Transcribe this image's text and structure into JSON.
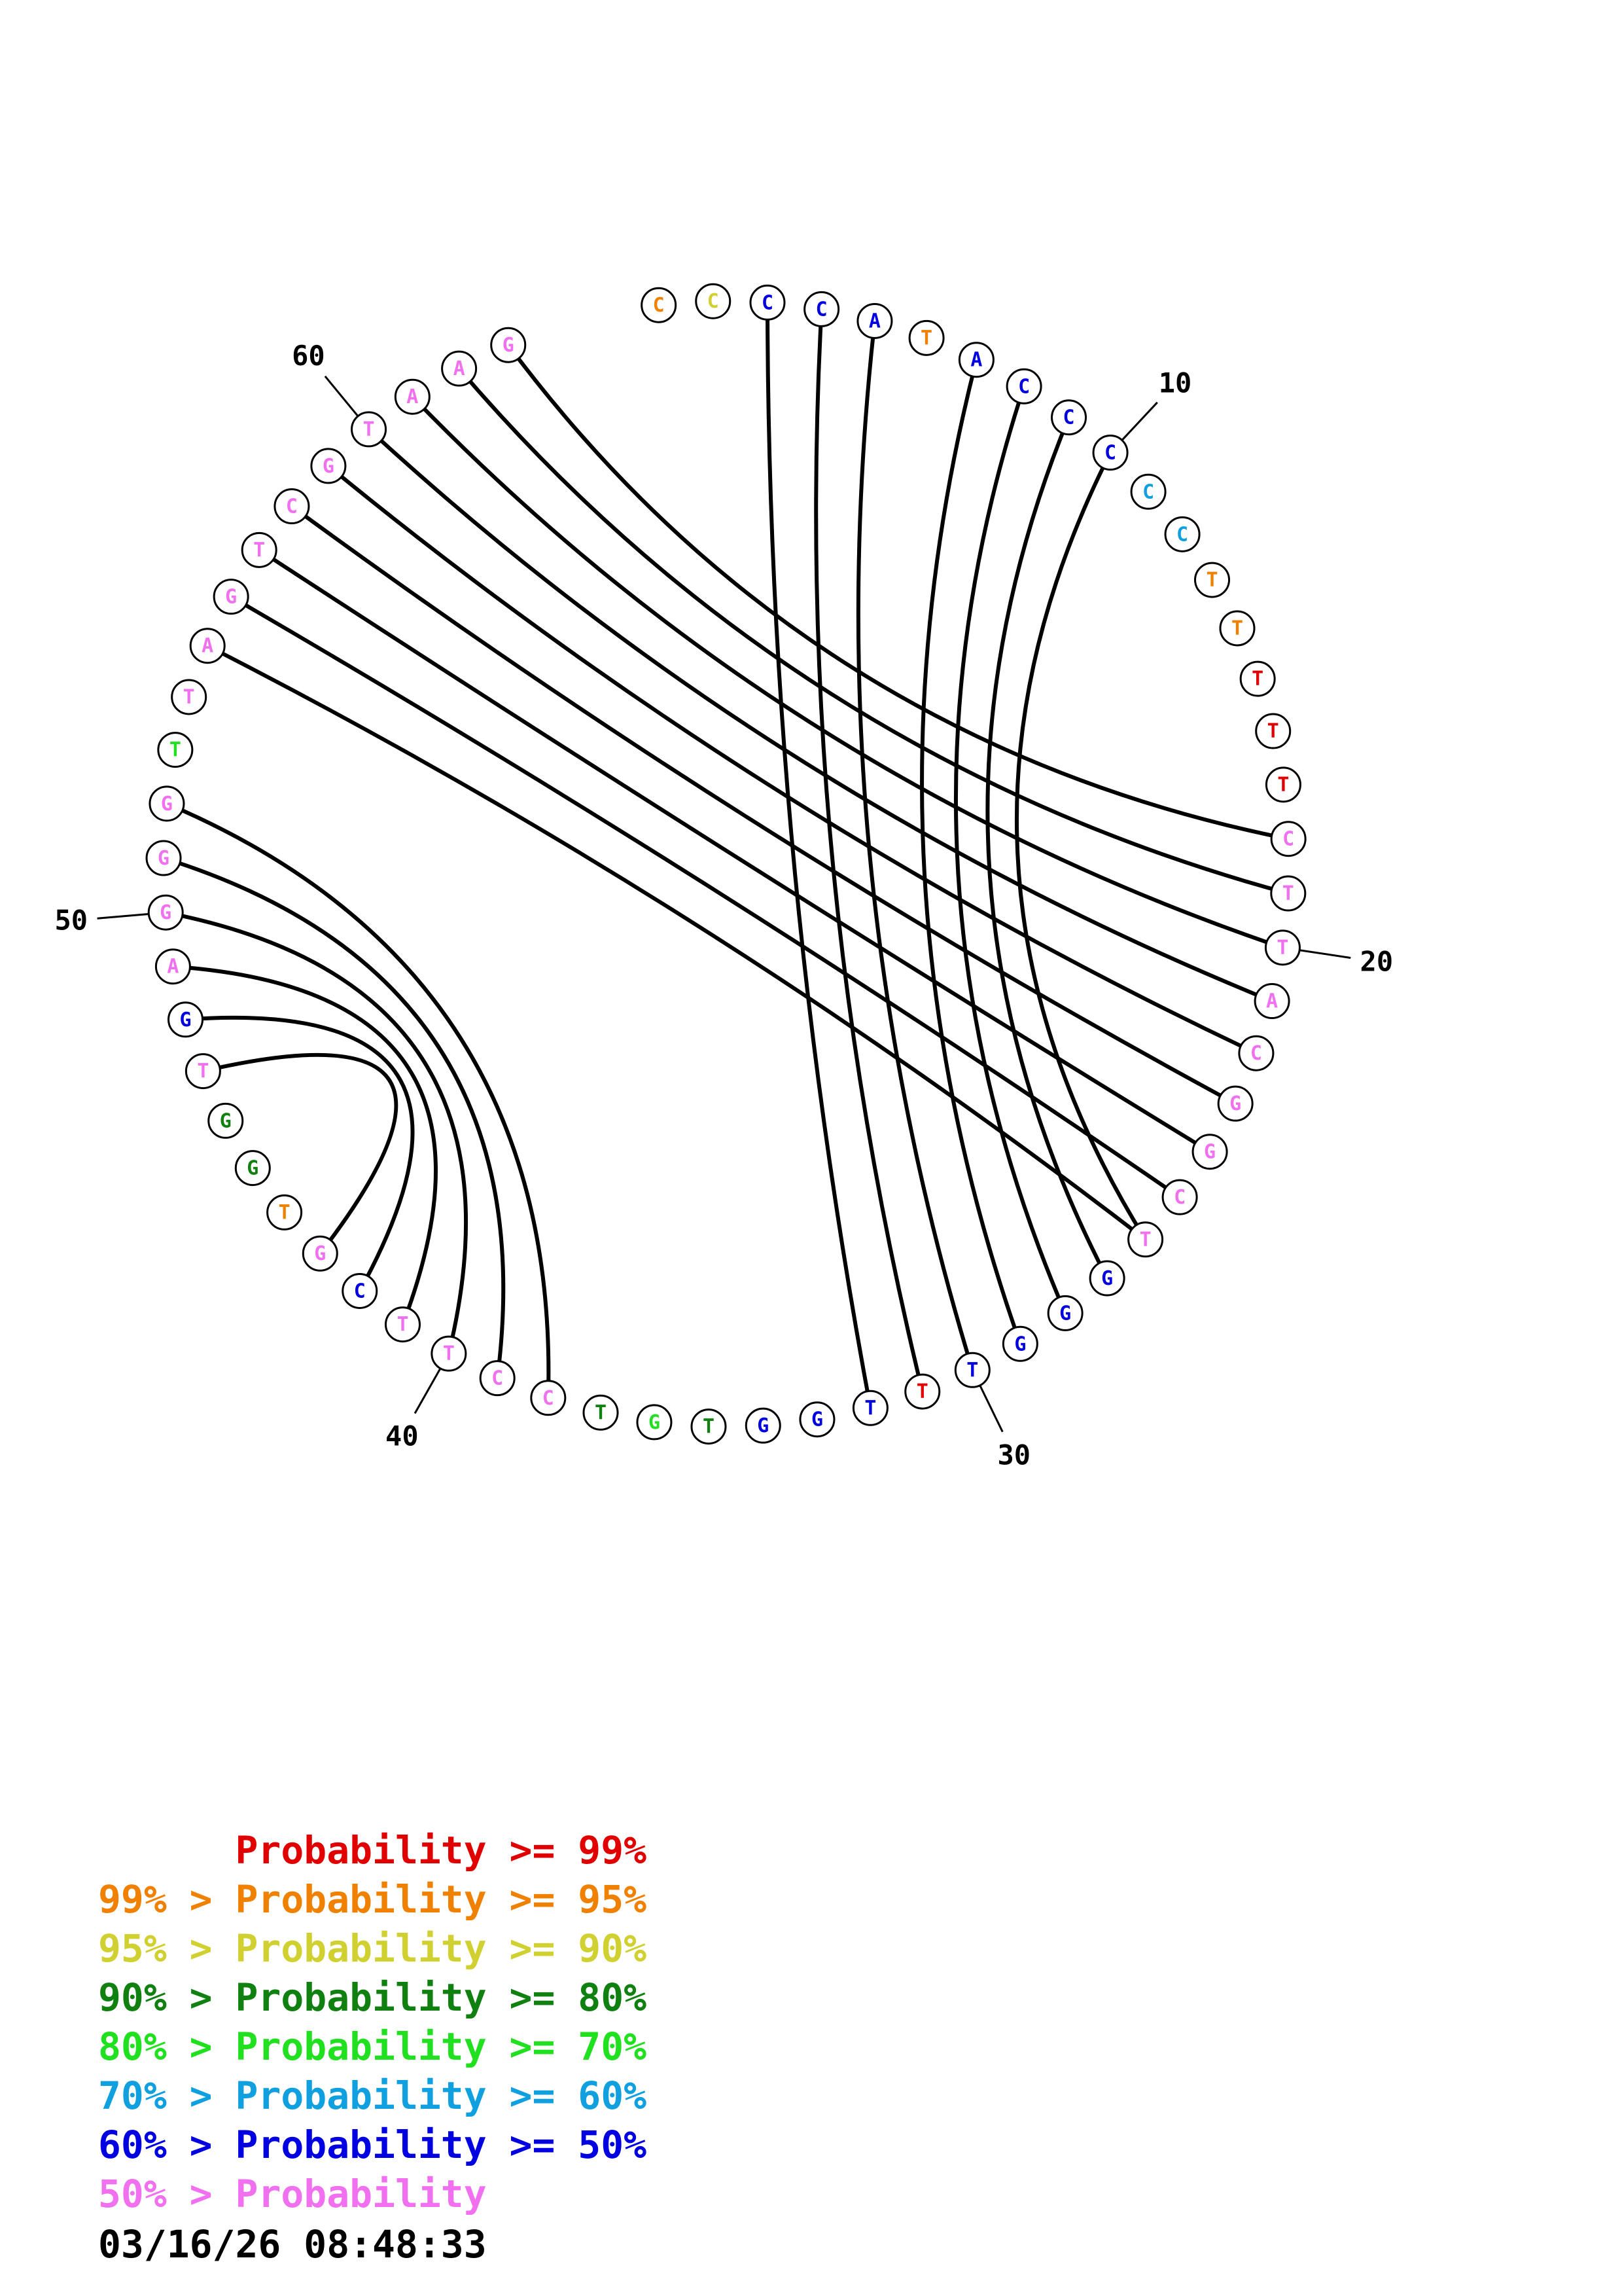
{
  "colors": {
    "p99": "#e00000",
    "p95": "#f08000",
    "p90": "#d0d030",
    "p80": "#108010",
    "p70": "#20e020",
    "p60": "#10a0e0",
    "p50": "#0000e0",
    "plow": "#f070f0"
  },
  "sequence": [
    {
      "n": 1,
      "base": "C",
      "prob": "p95"
    },
    {
      "n": 2,
      "base": "C",
      "prob": "p90"
    },
    {
      "n": 3,
      "base": "C",
      "prob": "p50"
    },
    {
      "n": 4,
      "base": "C",
      "prob": "p50"
    },
    {
      "n": 5,
      "base": "A",
      "prob": "p50"
    },
    {
      "n": 6,
      "base": "T",
      "prob": "p95"
    },
    {
      "n": 7,
      "base": "A",
      "prob": "p50"
    },
    {
      "n": 8,
      "base": "C",
      "prob": "p50"
    },
    {
      "n": 9,
      "base": "C",
      "prob": "p50"
    },
    {
      "n": 10,
      "base": "C",
      "prob": "p50"
    },
    {
      "n": 11,
      "base": "C",
      "prob": "p60"
    },
    {
      "n": 12,
      "base": "C",
      "prob": "p60"
    },
    {
      "n": 13,
      "base": "T",
      "prob": "p95"
    },
    {
      "n": 14,
      "base": "T",
      "prob": "p95"
    },
    {
      "n": 15,
      "base": "T",
      "prob": "p99"
    },
    {
      "n": 16,
      "base": "T",
      "prob": "p99"
    },
    {
      "n": 17,
      "base": "T",
      "prob": "p99"
    },
    {
      "n": 18,
      "base": "C",
      "prob": "plow"
    },
    {
      "n": 19,
      "base": "T",
      "prob": "plow"
    },
    {
      "n": 20,
      "base": "T",
      "prob": "plow"
    },
    {
      "n": 21,
      "base": "A",
      "prob": "plow"
    },
    {
      "n": 22,
      "base": "C",
      "prob": "plow"
    },
    {
      "n": 23,
      "base": "G",
      "prob": "plow"
    },
    {
      "n": 24,
      "base": "G",
      "prob": "plow"
    },
    {
      "n": 25,
      "base": "C",
      "prob": "plow"
    },
    {
      "n": 26,
      "base": "T",
      "prob": "plow"
    },
    {
      "n": 27,
      "base": "G",
      "prob": "p50"
    },
    {
      "n": 28,
      "base": "G",
      "prob": "p50"
    },
    {
      "n": 29,
      "base": "G",
      "prob": "p50"
    },
    {
      "n": 30,
      "base": "T",
      "prob": "p50"
    },
    {
      "n": 31,
      "base": "T",
      "prob": "p99"
    },
    {
      "n": 32,
      "base": "T",
      "prob": "p50"
    },
    {
      "n": 33,
      "base": "G",
      "prob": "p50"
    },
    {
      "n": 34,
      "base": "G",
      "prob": "p50"
    },
    {
      "n": 35,
      "base": "T",
      "prob": "p80"
    },
    {
      "n": 36,
      "base": "G",
      "prob": "p70"
    },
    {
      "n": 37,
      "base": "T",
      "prob": "p80"
    },
    {
      "n": 38,
      "base": "C",
      "prob": "plow"
    },
    {
      "n": 39,
      "base": "C",
      "prob": "plow"
    },
    {
      "n": 40,
      "base": "T",
      "prob": "plow"
    },
    {
      "n": 41,
      "base": "T",
      "prob": "plow"
    },
    {
      "n": 42,
      "base": "C",
      "prob": "p50"
    },
    {
      "n": 43,
      "base": "G",
      "prob": "plow"
    },
    {
      "n": 44,
      "base": "T",
      "prob": "p95"
    },
    {
      "n": 45,
      "base": "G",
      "prob": "p80"
    },
    {
      "n": 46,
      "base": "G",
      "prob": "p80"
    },
    {
      "n": 47,
      "base": "T",
      "prob": "plow"
    },
    {
      "n": 48,
      "base": "G",
      "prob": "p50"
    },
    {
      "n": 49,
      "base": "A",
      "prob": "plow"
    },
    {
      "n": 50,
      "base": "G",
      "prob": "plow"
    },
    {
      "n": 51,
      "base": "G",
      "prob": "plow"
    },
    {
      "n": 52,
      "base": "G",
      "prob": "plow"
    },
    {
      "n": 53,
      "base": "T",
      "prob": "p70"
    },
    {
      "n": 54,
      "base": "T",
      "prob": "plow"
    },
    {
      "n": 55,
      "base": "A",
      "prob": "plow"
    },
    {
      "n": 56,
      "base": "G",
      "prob": "plow"
    },
    {
      "n": 57,
      "base": "T",
      "prob": "plow"
    },
    {
      "n": 58,
      "base": "C",
      "prob": "plow"
    },
    {
      "n": 59,
      "base": "G",
      "prob": "plow"
    },
    {
      "n": 60,
      "base": "T",
      "prob": "plow"
    },
    {
      "n": 61,
      "base": "A",
      "prob": "plow"
    },
    {
      "n": 62,
      "base": "A",
      "prob": "plow"
    },
    {
      "n": 63,
      "base": "G",
      "prob": "plow"
    }
  ],
  "pairs": [
    [
      3,
      32
    ],
    [
      4,
      31
    ],
    [
      5,
      30
    ],
    [
      7,
      29
    ],
    [
      8,
      28
    ],
    [
      9,
      27
    ],
    [
      10,
      26
    ],
    [
      18,
      63
    ],
    [
      19,
      62
    ],
    [
      20,
      61
    ],
    [
      21,
      60
    ],
    [
      22,
      59
    ],
    [
      23,
      58
    ],
    [
      24,
      57
    ],
    [
      25,
      56
    ],
    [
      26,
      55
    ],
    [
      38,
      52
    ],
    [
      39,
      51
    ],
    [
      40,
      50
    ],
    [
      41,
      49
    ],
    [
      42,
      48
    ],
    [
      43,
      47
    ]
  ],
  "ticks": [
    {
      "n": 10,
      "label": "10"
    },
    {
      "n": 20,
      "label": "20"
    },
    {
      "n": 30,
      "label": "30"
    },
    {
      "n": 40,
      "label": "40"
    },
    {
      "n": 50,
      "label": "50"
    },
    {
      "n": 60,
      "label": "60"
    }
  ],
  "legend": [
    {
      "text": "      Probability >= 99%",
      "color": "p99"
    },
    {
      "text": "99% > Probability >= 95%",
      "color": "p95"
    },
    {
      "text": "95% > Probability >= 90%",
      "color": "p90"
    },
    {
      "text": "90% > Probability >= 80%",
      "color": "p80"
    },
    {
      "text": "80% > Probability >= 70%",
      "color": "p70"
    },
    {
      "text": "70% > Probability >= 60%",
      "color": "p60"
    },
    {
      "text": "60% > Probability >= 50%",
      "color": "p50"
    },
    {
      "text": "50% > Probability",
      "color": "plow"
    }
  ],
  "timestamp": "03/16/26 08:48:33"
}
